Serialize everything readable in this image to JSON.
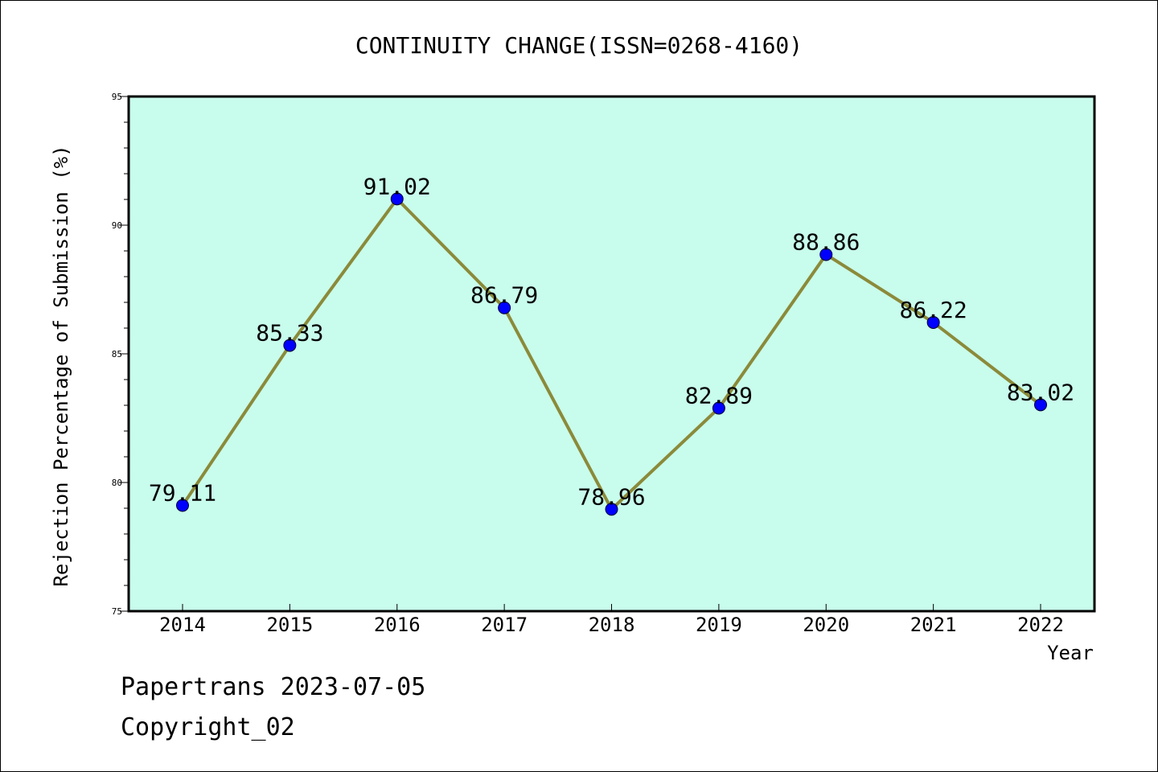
{
  "chart_data": {
    "type": "line",
    "title": "CONTINUITY CHANGE(ISSN=0268-4160)",
    "xlabel": "Year",
    "ylabel": "Rejection Percentage of Submission (%)",
    "categories": [
      "2014",
      "2015",
      "2016",
      "2017",
      "2018",
      "2019",
      "2020",
      "2021",
      "2022"
    ],
    "series": [
      {
        "values": [
          79.11,
          85.33,
          91.02,
          86.79,
          78.96,
          82.89,
          88.86,
          86.22,
          83.02
        ],
        "labels": [
          "79.11",
          "85.33",
          "91.02",
          "86.79",
          "78.96",
          "82.89",
          "88.86",
          "86.22",
          "83.02"
        ],
        "line_color": "#8b8a3a",
        "marker_color": "#0000ff"
      }
    ],
    "ylim": [
      75,
      95
    ],
    "yticks": [
      "75",
      "80",
      "85",
      "90",
      "95"
    ],
    "plot_background": "#c8fcec",
    "grid": false,
    "legend": "none"
  },
  "footer": {
    "line1": "Papertrans 2023-07-05",
    "line2": "Copyright_02"
  }
}
